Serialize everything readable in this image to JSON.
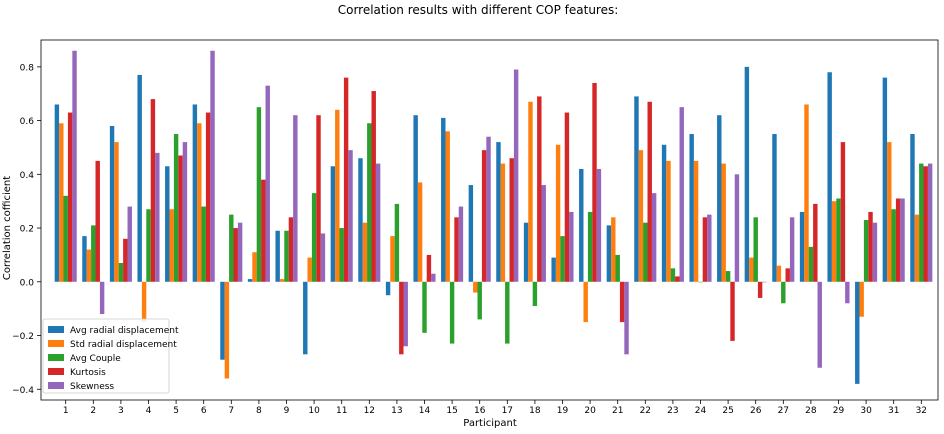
{
  "chart_data": {
    "type": "bar",
    "title": "Correlation results with different COP features:",
    "xlabel": "Participant",
    "ylabel": "Correlation cofficient",
    "ylim": [
      -0.44,
      0.9
    ],
    "yticks": [
      -0.4,
      -0.2,
      0.0,
      0.2,
      0.4,
      0.6,
      0.8
    ],
    "ytick_labels": [
      "−0.4",
      "−0.2",
      "0.0",
      "0.2",
      "0.4",
      "0.6",
      "0.8"
    ],
    "grid": false,
    "legend_position": "lower-left",
    "categories": [
      "1",
      "2",
      "3",
      "4",
      "5",
      "6",
      "7",
      "8",
      "9",
      "10",
      "11",
      "12",
      "13",
      "14",
      "15",
      "16",
      "17",
      "18",
      "19",
      "20",
      "21",
      "22",
      "23",
      "24",
      "25",
      "26",
      "27",
      "28",
      "29",
      "30",
      "31",
      "32"
    ],
    "series": [
      {
        "name": "Avg radial displacement",
        "color": "#1f77b4",
        "values": [
          0.66,
          0.17,
          0.58,
          0.77,
          0.43,
          0.66,
          -0.29,
          0.01,
          0.19,
          -0.27,
          0.43,
          0.46,
          -0.05,
          0.62,
          0.61,
          0.36,
          0.52,
          0.22,
          0.09,
          0.42,
          0.21,
          0.69,
          0.51,
          0.55,
          0.62,
          0.8,
          0.55,
          0.26,
          0.78,
          -0.38,
          0.76,
          0.55
        ]
      },
      {
        "name": "Std radial displacement",
        "color": "#ff7f0e",
        "values": [
          0.59,
          0.12,
          0.52,
          -0.15,
          0.27,
          0.59,
          -0.36,
          0.11,
          0.01,
          0.09,
          0.64,
          0.22,
          0.17,
          0.37,
          0.56,
          -0.04,
          0.44,
          0.67,
          0.51,
          -0.15,
          0.24,
          0.49,
          0.45,
          0.45,
          0.44,
          0.09,
          0.06,
          0.66,
          0.3,
          -0.13,
          0.52,
          0.25
        ]
      },
      {
        "name": "Avg Couple",
        "color": "#2ca02c",
        "values": [
          0.32,
          0.21,
          0.07,
          0.27,
          0.55,
          0.28,
          0.25,
          0.65,
          0.19,
          0.33,
          0.2,
          0.59,
          0.29,
          -0.19,
          -0.23,
          -0.14,
          -0.23,
          -0.09,
          0.17,
          0.26,
          0.1,
          0.22,
          0.05,
          0.0,
          0.04,
          0.24,
          -0.08,
          0.13,
          0.31,
          0.23,
          0.27,
          0.44
        ]
      },
      {
        "name": "Kurtosis",
        "color": "#d62728",
        "values": [
          0.63,
          0.45,
          0.16,
          0.68,
          0.47,
          0.63,
          0.2,
          0.38,
          0.24,
          0.62,
          0.76,
          0.71,
          -0.27,
          0.1,
          0.24,
          0.49,
          0.46,
          0.69,
          0.63,
          0.74,
          -0.15,
          0.67,
          0.02,
          0.24,
          -0.22,
          -0.06,
          0.05,
          0.29,
          0.52,
          0.26,
          0.31,
          0.43
        ]
      },
      {
        "name": "Skewness",
        "color": "#9467bd",
        "values": [
          0.86,
          -0.12,
          0.28,
          0.48,
          0.52,
          0.86,
          0.22,
          0.73,
          0.62,
          0.18,
          0.49,
          0.44,
          -0.24,
          0.03,
          0.28,
          0.54,
          0.79,
          0.36,
          0.26,
          0.42,
          -0.27,
          0.33,
          0.65,
          0.25,
          0.4,
          0.0,
          0.24,
          -0.32,
          -0.08,
          0.22,
          0.31,
          0.44
        ]
      }
    ]
  }
}
